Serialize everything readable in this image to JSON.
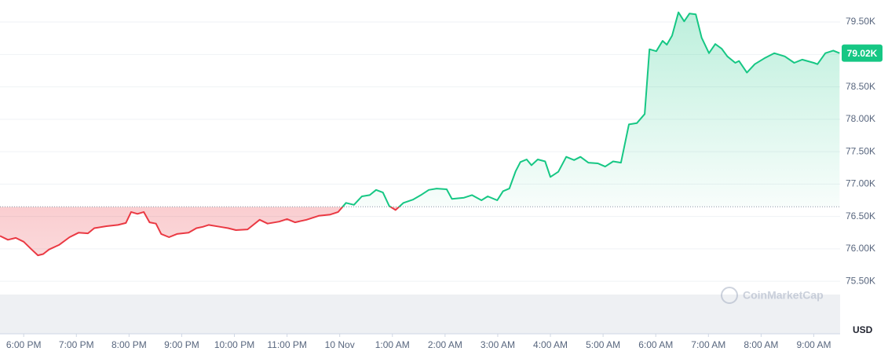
{
  "chart_data": {
    "type": "line",
    "x": [
      17.55,
      17.7,
      17.85,
      18.0,
      18.15,
      18.27,
      18.37,
      18.48,
      18.67,
      18.87,
      19.04,
      19.22,
      19.34,
      19.57,
      19.79,
      19.94,
      20.04,
      20.16,
      20.28,
      20.39,
      20.51,
      20.61,
      20.76,
      20.91,
      21.13,
      21.28,
      21.4,
      21.51,
      21.73,
      21.88,
      22.03,
      22.25,
      22.48,
      22.63,
      22.85,
      23.0,
      23.15,
      23.37,
      23.6,
      23.82,
      23.97,
      24.12,
      24.27,
      24.42,
      24.57,
      24.69,
      24.82,
      24.94,
      25.06,
      25.21,
      25.39,
      25.54,
      25.69,
      25.84,
      26.03,
      26.13,
      26.36,
      26.51,
      26.69,
      26.81,
      26.99,
      27.1,
      27.22,
      27.34,
      27.43,
      27.55,
      27.64,
      27.76,
      27.9,
      28.0,
      28.15,
      28.3,
      28.45,
      28.57,
      28.72,
      28.9,
      29.04,
      29.19,
      29.34,
      29.49,
      29.64,
      29.79,
      29.88,
      30.01,
      30.13,
      30.21,
      30.31,
      30.43,
      30.54,
      30.64,
      30.76,
      30.87,
      31.01,
      31.13,
      31.25,
      31.36,
      31.51,
      31.58,
      31.73,
      31.88,
      32.06,
      32.25,
      32.45,
      32.63,
      32.78,
      33.0,
      33.07,
      33.22,
      33.37,
      33.49
    ],
    "series": [
      {
        "name": "USD",
        "values": [
          76200,
          76140,
          76170,
          76110,
          75990,
          75900,
          75920,
          75990,
          76060,
          76180,
          76250,
          76240,
          76320,
          76350,
          76370,
          76400,
          76570,
          76540,
          76570,
          76410,
          76390,
          76230,
          76180,
          76230,
          76250,
          76320,
          76340,
          76370,
          76340,
          76320,
          76290,
          76300,
          76450,
          76390,
          76420,
          76460,
          76410,
          76450,
          76510,
          76530,
          76570,
          76710,
          76680,
          76810,
          76830,
          76910,
          76870,
          76660,
          76600,
          76710,
          76760,
          76830,
          76910,
          76930,
          76920,
          76770,
          76790,
          76830,
          76750,
          76810,
          76750,
          76890,
          76930,
          77200,
          77340,
          77380,
          77290,
          77380,
          77350,
          77110,
          77190,
          77420,
          77370,
          77420,
          77330,
          77320,
          77270,
          77350,
          77330,
          77920,
          77940,
          78080,
          79080,
          79050,
          79210,
          79150,
          79290,
          79650,
          79510,
          79630,
          79620,
          79260,
          79020,
          79160,
          79090,
          78970,
          78870,
          78900,
          78720,
          78850,
          78940,
          79020,
          78970,
          78870,
          78920,
          78870,
          78850,
          79020,
          79060,
          79020
        ]
      }
    ],
    "baseline": 76650,
    "up_color": "#16c784",
    "down_color": "#ea3943",
    "price_label": {
      "value": 79020,
      "label": "79.02K"
    },
    "xlim": [
      17.55,
      33.5
    ],
    "xticks": [
      {
        "value": 18,
        "label": "6:00 PM"
      },
      {
        "value": 19,
        "label": "7:00 PM"
      },
      {
        "value": 20,
        "label": "8:00 PM"
      },
      {
        "value": 21,
        "label": "9:00 PM"
      },
      {
        "value": 22,
        "label": "10:00 PM"
      },
      {
        "value": 23,
        "label": "11:00 PM"
      },
      {
        "value": 24,
        "label": "10 Nov"
      },
      {
        "value": 25,
        "label": "1:00 AM"
      },
      {
        "value": 26,
        "label": "2:00 AM"
      },
      {
        "value": 27,
        "label": "3:00 AM"
      },
      {
        "value": 28,
        "label": "4:00 AM"
      },
      {
        "value": 29,
        "label": "5:00 AM"
      },
      {
        "value": 30,
        "label": "6:00 AM"
      },
      {
        "value": 31,
        "label": "7:00 AM"
      },
      {
        "value": 32,
        "label": "8:00 AM"
      },
      {
        "value": 33,
        "label": "9:00 AM"
      }
    ],
    "ylim": [
      74690,
      79840
    ],
    "yticks": [
      {
        "value": 75500,
        "label": "75.50K"
      },
      {
        "value": 76000,
        "label": "76.00K"
      },
      {
        "value": 76500,
        "label": "76.50K"
      },
      {
        "value": 77000,
        "label": "77.00K"
      },
      {
        "value": 77500,
        "label": "77.50K"
      },
      {
        "value": 78000,
        "label": "78.00K"
      },
      {
        "value": 78500,
        "label": "78.50K"
      },
      {
        "value": 79000,
        "label": "79.00K"
      },
      {
        "value": 79500,
        "label": "79.50K"
      }
    ],
    "grid": true,
    "unit_label": "USD",
    "watermark": "CoinMarketCap"
  }
}
